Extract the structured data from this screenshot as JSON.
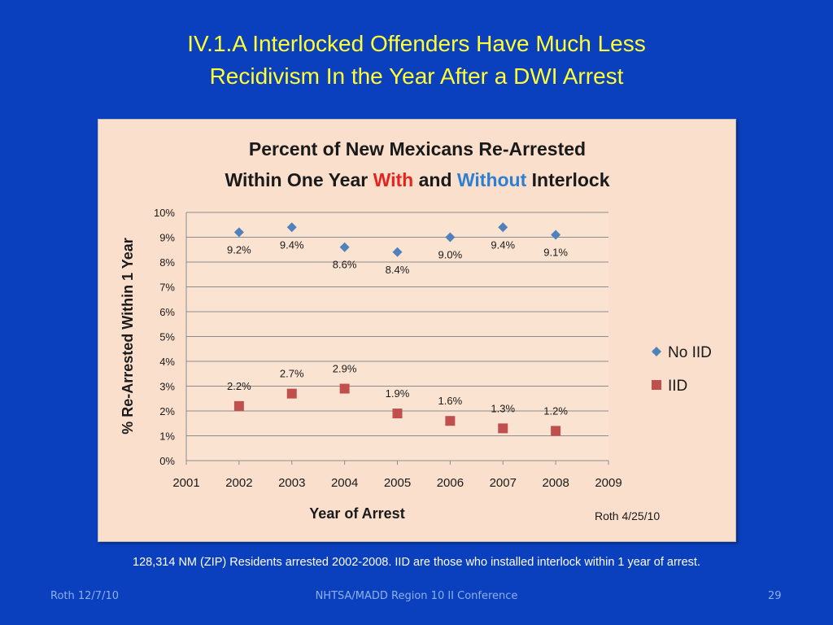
{
  "slide": {
    "title_line1": "IV.1.A Interlocked Offenders Have Much Less",
    "title_line2": "Recidivism In the Year After a DWI Arrest",
    "caption": "128,314 NM (ZIP) Residents arrested 2002-2008.  IID are those who installed interlock within 1 year of arrest.",
    "footer_left": "Roth 12/7/10",
    "footer_center": "NHTSA/MADD Region 10 II Conference",
    "footer_right": "29"
  },
  "colors": {
    "background": "#0a3fbd",
    "title": "#ffff33",
    "chart_background": "#fadfcc",
    "no_iid": "#4f81bd",
    "iid": "#c0504d",
    "title_with": "#e8231f",
    "title_without": "#2e7fd1"
  },
  "chart_data": {
    "type": "scatter",
    "title_line1": "Percent  of New Mexicans Re-Arrested",
    "title_line2_parts": [
      "Within One Year ",
      "With",
      " and ",
      "Without",
      " Interlock"
    ],
    "xlabel": "Year of Arrest",
    "ylabel": "% Re-Arrested Within 1 Year",
    "annotation": "Roth 4/25/10",
    "xlim": [
      2001,
      2009
    ],
    "ylim": [
      0,
      10
    ],
    "x_ticks": [
      2001,
      2002,
      2003,
      2004,
      2005,
      2006,
      2007,
      2008,
      2009
    ],
    "y_ticks": [
      "0%",
      "1%",
      "2%",
      "3%",
      "4%",
      "5%",
      "6%",
      "7%",
      "8%",
      "9%",
      "10%"
    ],
    "grid": "horizontal",
    "legend_position": "right",
    "series": [
      {
        "name": "No IID",
        "marker": "diamond",
        "x": [
          2002,
          2003,
          2004,
          2005,
          2006,
          2007,
          2008
        ],
        "y": [
          9.2,
          9.4,
          8.6,
          8.4,
          9.0,
          9.4,
          9.1
        ],
        "labels": [
          "9.2%",
          "9.4%",
          "8.6%",
          "8.4%",
          "9.0%",
          "9.4%",
          "9.1%"
        ]
      },
      {
        "name": "IID",
        "marker": "square",
        "x": [
          2002,
          2003,
          2004,
          2005,
          2006,
          2007,
          2008
        ],
        "y": [
          2.2,
          2.7,
          2.9,
          1.9,
          1.6,
          1.3,
          1.2
        ],
        "labels": [
          "2.2%",
          "2.7%",
          "2.9%",
          "1.9%",
          "1.6%",
          "1.3%",
          "1.2%"
        ]
      }
    ]
  }
}
